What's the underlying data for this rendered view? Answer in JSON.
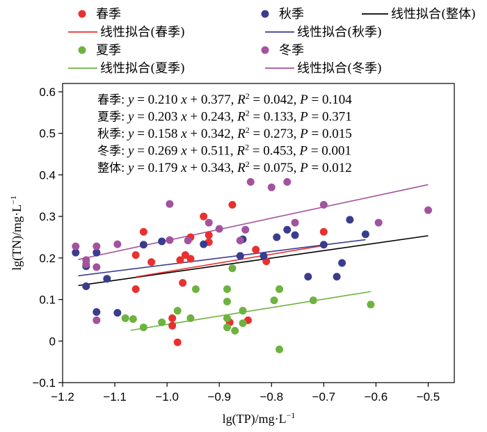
{
  "chart_data": {
    "type": "scatter",
    "xlabel": "lg(TP)/mg·L",
    "xlabel_sup": "−1",
    "ylabel": "lg(TN)/mg·L",
    "ylabel_sup": "−1",
    "xlim": [
      -1.2,
      -0.45
    ],
    "ylim": [
      -0.1,
      0.62
    ],
    "xticks": [
      -1.2,
      -1.1,
      -1.0,
      -0.9,
      -0.8,
      -0.7,
      -0.6,
      -0.5
    ],
    "xtick_labels": [
      "−1.2",
      "−1.1",
      "−1.0",
      "−0.9",
      "−0.8",
      "−0.7",
      "−0.6",
      "−0.5"
    ],
    "yticks": [
      -0.1,
      0,
      0.1,
      0.2,
      0.3,
      0.4,
      0.5,
      0.6
    ],
    "ytick_labels": [
      "−0.1",
      "0",
      "0.1",
      "0.2",
      "0.3",
      "0.4",
      "0.5",
      "0.6"
    ],
    "legend_position": "top",
    "legend": [
      {
        "label": "春季",
        "kind": "marker",
        "color": "#e8312f"
      },
      {
        "label": "秋季",
        "kind": "marker",
        "color": "#3a3c8e"
      },
      {
        "label": "线性拟合(整体)",
        "kind": "line",
        "color": "#000000"
      },
      {
        "label": "线性拟合(春季)",
        "kind": "line",
        "color": "#e8312f"
      },
      {
        "label": "线性拟合(秋季)",
        "kind": "line",
        "color": "#3a3c8e"
      },
      {
        "label": "夏季",
        "kind": "marker",
        "color": "#6db33f"
      },
      {
        "label": "冬季",
        "kind": "marker",
        "color": "#a3529e"
      },
      {
        "label": "线性拟合(夏季)",
        "kind": "line",
        "color": "#6db33f"
      },
      {
        "label": "线性拟合(冬季)",
        "kind": "line",
        "color": "#a3529e"
      }
    ],
    "annotations": [
      {
        "season": "春季",
        "slope": "0.210",
        "intercept": "0.377",
        "r2": "0.042",
        "p": "0.104"
      },
      {
        "season": "夏季",
        "slope": "0.203",
        "intercept": "0.243",
        "r2": "0.133",
        "p": "0.371"
      },
      {
        "season": "秋季",
        "slope": "0.158",
        "intercept": "0.342",
        "r2": "0.273",
        "p": "0.015"
      },
      {
        "season": "冬季",
        "slope": "0.269",
        "intercept": "0.511",
        "r2": "0.453",
        "p": "0.001"
      },
      {
        "season": "整体",
        "slope": "0.179",
        "intercept": "0.343",
        "r2": "0.075",
        "p": "0.012"
      }
    ],
    "series": [
      {
        "name": "春季",
        "color": "#e8312f",
        "points": [
          [
            -1.06,
            0.125
          ],
          [
            -1.06,
            0.207
          ],
          [
            -1.045,
            0.263
          ],
          [
            -1.03,
            0.19
          ],
          [
            -0.99,
            0.055
          ],
          [
            -0.99,
            0.037
          ],
          [
            -0.98,
            -0.003
          ],
          [
            -0.975,
            0.195
          ],
          [
            -0.97,
            0.14
          ],
          [
            -0.965,
            0.207
          ],
          [
            -0.955,
            0.198
          ],
          [
            -0.955,
            0.25
          ],
          [
            -0.93,
            0.3
          ],
          [
            -0.92,
            0.255
          ],
          [
            -0.92,
            0.238
          ],
          [
            -0.88,
            0.045
          ],
          [
            -0.875,
            0.328
          ],
          [
            -0.845,
            0.05
          ],
          [
            -0.83,
            0.22
          ],
          [
            -0.81,
            0.192
          ],
          [
            -0.7,
            0.263
          ]
        ],
        "fit_range": [
          -1.06,
          -0.7
        ]
      },
      {
        "name": "夏季",
        "color": "#6db33f",
        "points": [
          [
            -1.08,
            0.055
          ],
          [
            -1.065,
            0.053
          ],
          [
            -1.045,
            0.033
          ],
          [
            -1.01,
            0.045
          ],
          [
            -0.98,
            0.073
          ],
          [
            -0.955,
            0.055
          ],
          [
            -0.945,
            0.125
          ],
          [
            -0.885,
            0.033
          ],
          [
            -0.885,
            0.055
          ],
          [
            -0.885,
            0.095
          ],
          [
            -0.885,
            0.125
          ],
          [
            -0.875,
            0.175
          ],
          [
            -0.87,
            0.025
          ],
          [
            -0.855,
            0.073
          ],
          [
            -0.855,
            0.043
          ],
          [
            -0.795,
            0.098
          ],
          [
            -0.785,
            -0.02
          ],
          [
            -0.785,
            0.125
          ],
          [
            -0.72,
            0.098
          ],
          [
            -0.61,
            0.088
          ]
        ],
        "fit_range": [
          -1.07,
          -0.61
        ]
      },
      {
        "name": "秋季",
        "color": "#3a3c8e",
        "points": [
          [
            -1.175,
            0.213
          ],
          [
            -1.155,
            0.132
          ],
          [
            -1.155,
            0.18
          ],
          [
            -1.135,
            0.213
          ],
          [
            -1.135,
            0.07
          ],
          [
            -1.115,
            0.15
          ],
          [
            -1.095,
            0.068
          ],
          [
            -1.045,
            0.232
          ],
          [
            -1.01,
            0.24
          ],
          [
            -0.93,
            0.233
          ],
          [
            -0.86,
            0.205
          ],
          [
            -0.855,
            0.245
          ],
          [
            -0.815,
            0.205
          ],
          [
            -0.79,
            0.25
          ],
          [
            -0.77,
            0.268
          ],
          [
            -0.755,
            0.255
          ],
          [
            -0.73,
            0.155
          ],
          [
            -0.7,
            0.232
          ],
          [
            -0.675,
            0.155
          ],
          [
            -0.665,
            0.188
          ],
          [
            -0.65,
            0.292
          ],
          [
            -0.62,
            0.257
          ]
        ],
        "fit_range": [
          -1.17,
          -0.62
        ]
      },
      {
        "name": "冬季",
        "color": "#a3529e",
        "points": [
          [
            -1.175,
            0.228
          ],
          [
            -1.155,
            0.195
          ],
          [
            -1.155,
            0.185
          ],
          [
            -1.135,
            0.228
          ],
          [
            -1.135,
            0.178
          ],
          [
            -1.135,
            0.05
          ],
          [
            -1.095,
            0.233
          ],
          [
            -0.995,
            0.33
          ],
          [
            -0.995,
            0.243
          ],
          [
            -0.96,
            0.242
          ],
          [
            -0.92,
            0.285
          ],
          [
            -0.9,
            0.27
          ],
          [
            -0.86,
            0.242
          ],
          [
            -0.85,
            0.268
          ],
          [
            -0.84,
            0.383
          ],
          [
            -0.8,
            0.37
          ],
          [
            -0.77,
            0.383
          ],
          [
            -0.755,
            0.285
          ],
          [
            -0.7,
            0.328
          ],
          [
            -0.595,
            0.285
          ],
          [
            -0.5,
            0.315
          ]
        ],
        "fit_range": [
          -1.17,
          -0.5
        ]
      }
    ],
    "overall_fit": {
      "name": "整体",
      "color": "#000000",
      "fit_range": [
        -1.17,
        -0.5
      ]
    }
  }
}
